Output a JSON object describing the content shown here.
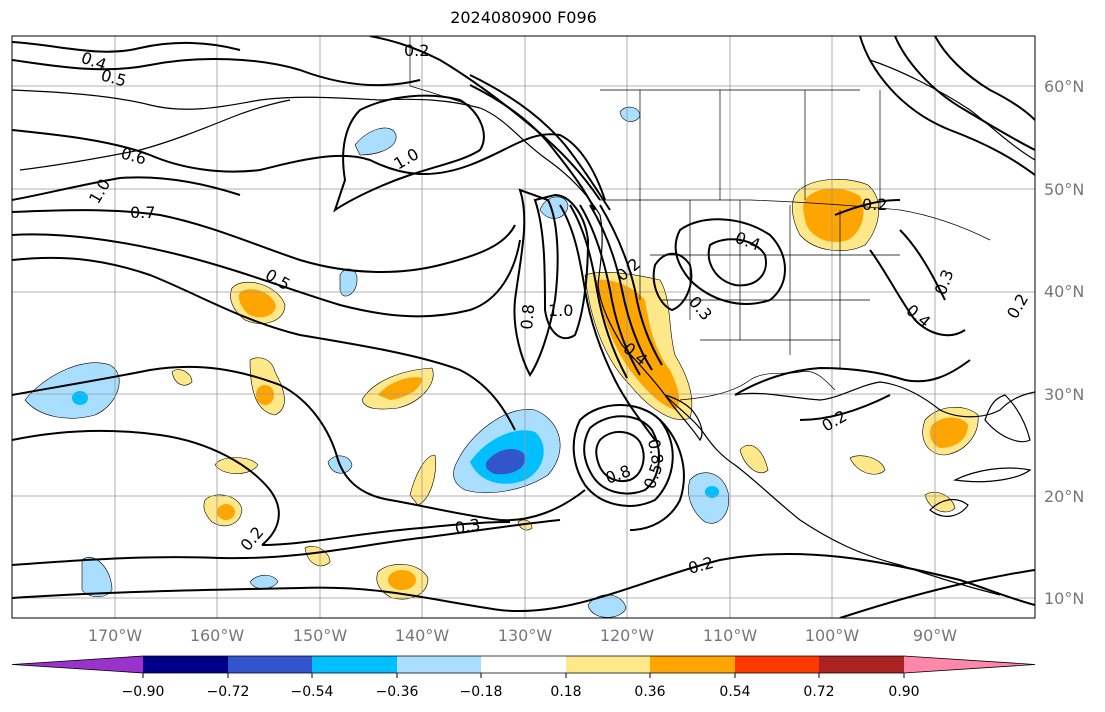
{
  "title": "2024080900 F096",
  "lat_labels": [
    {
      "text": "60°N",
      "value": 60
    },
    {
      "text": "50°N",
      "value": 50
    },
    {
      "text": "40°N",
      "value": 40
    },
    {
      "text": "30°N",
      "value": 30
    },
    {
      "text": "20°N",
      "value": 20
    },
    {
      "text": "10°N",
      "value": 10
    }
  ],
  "lon_labels": [
    {
      "text": "170°W",
      "value": -170
    },
    {
      "text": "160°W",
      "value": -160
    },
    {
      "text": "150°W",
      "value": -150
    },
    {
      "text": "140°W",
      "value": -140
    },
    {
      "text": "130°W",
      "value": -130
    },
    {
      "text": "120°W",
      "value": -120
    },
    {
      "text": "110°W",
      "value": -110
    },
    {
      "text": "100°W",
      "value": -100
    },
    {
      "text": "90°W",
      "value": -90
    }
  ],
  "colorbar": {
    "colors": [
      "#9933cc",
      "#000088",
      "#3355cc",
      "#00bfff",
      "#aadeff",
      "#ffffff",
      "#ffe88a",
      "#ffa500",
      "#ff3a00",
      "#aa2222",
      "#ff88aa"
    ],
    "tick_labels": [
      "−0.90",
      "−0.72",
      "−0.54",
      "−0.36",
      "−0.18",
      "0.18",
      "0.36",
      "0.54",
      "0.72",
      "0.90"
    ]
  },
  "contour_labels": [
    "0.4",
    "0.5",
    "0.2",
    "0.6",
    "1.0",
    "0.7",
    "1.0",
    "0.5",
    "0.8",
    "1.0",
    "0.2",
    "0.4",
    "0.3",
    "0.4",
    "0.2",
    "0.4",
    "0.3",
    "0.2",
    "0.8",
    "0.8",
    "0.5",
    "0.3",
    "0.2",
    "0.2",
    "0.2"
  ],
  "chart_data": {
    "type": "contour map",
    "title": "2024080900 F096",
    "lon_range": [
      -180,
      -80
    ],
    "lat_range": [
      8,
      65
    ],
    "grid": true,
    "colorbar_levels": [
      -0.9,
      -0.72,
      -0.54,
      -0.36,
      -0.18,
      0.18,
      0.36,
      0.54,
      0.72,
      0.9
    ],
    "contour_levels": [
      0.2,
      0.3,
      0.4,
      0.5,
      0.6,
      0.7,
      0.8,
      1.0
    ]
  }
}
